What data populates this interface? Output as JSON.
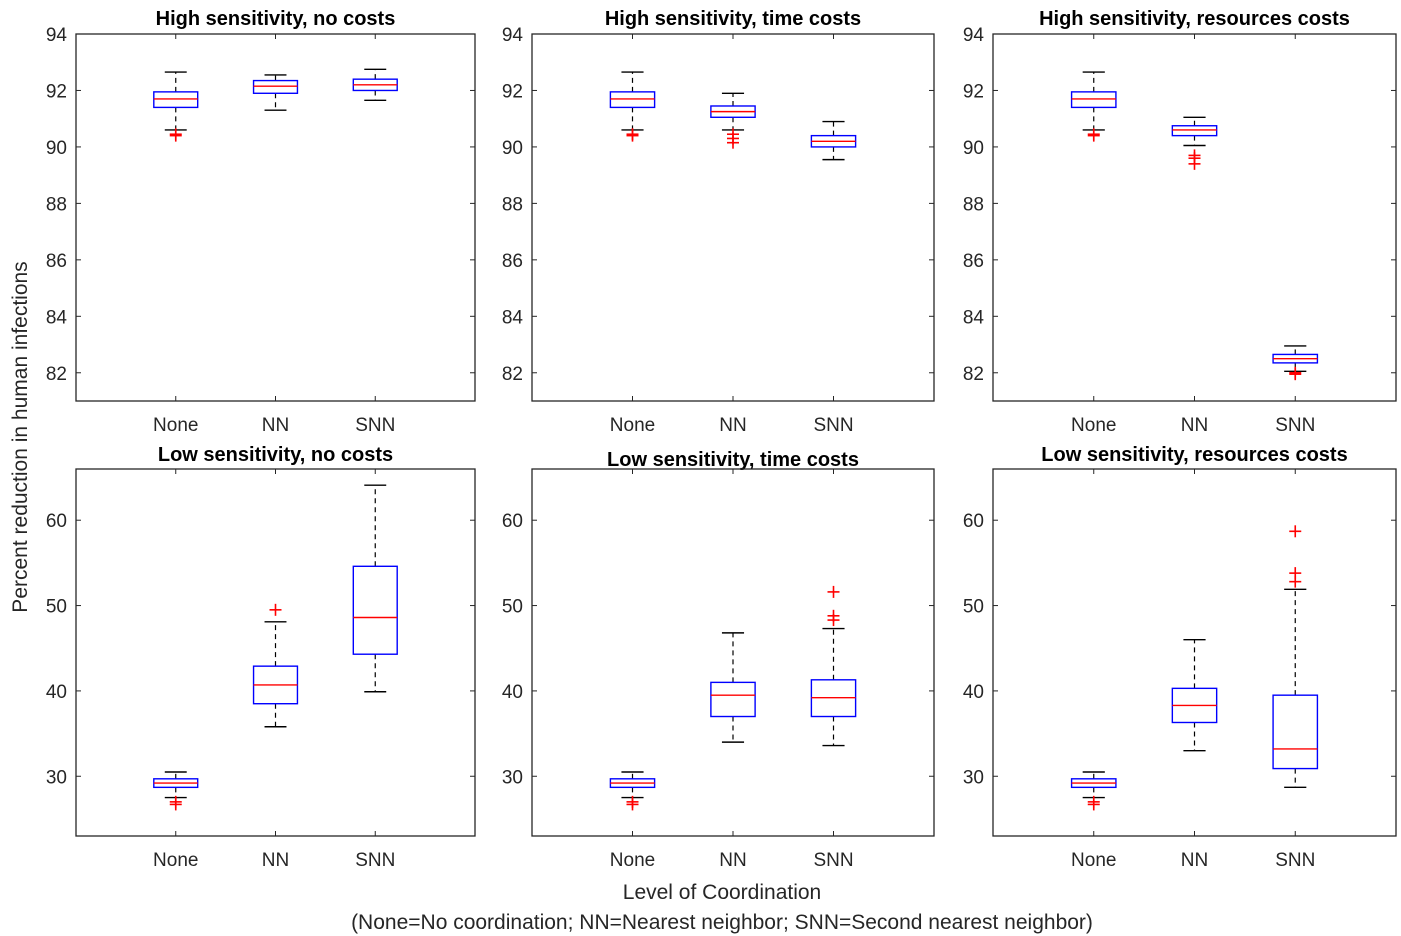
{
  "figure": {
    "ylabel": "Percent reduction in human infections",
    "xlabel": "Level of Coordination",
    "xlabel_note": "(None=No coordination; NN=Nearest neighbor; SNN=Second nearest neighbor)"
  },
  "colors": {
    "box": "#0000ff",
    "median": "#ff0000",
    "outlier": "#ff0000",
    "whisker": "#000000",
    "axes": "#262626"
  },
  "chart_data": [
    {
      "type": "box",
      "title": "High sensitivity, no costs",
      "categories": [
        "None",
        "NN",
        "SNN"
      ],
      "ylim": [
        81,
        94
      ],
      "yticks": [
        82,
        84,
        86,
        88,
        90,
        92,
        94
      ],
      "boxes": [
        {
          "q1": 91.4,
          "median": 91.7,
          "q3": 91.95,
          "whisker_low": 90.6,
          "whisker_high": 92.65,
          "outliers": [
            90.4,
            90.45
          ]
        },
        {
          "q1": 91.9,
          "median": 92.15,
          "q3": 92.35,
          "whisker_low": 91.3,
          "whisker_high": 92.55,
          "outliers": []
        },
        {
          "q1": 92.0,
          "median": 92.2,
          "q3": 92.4,
          "whisker_low": 91.65,
          "whisker_high": 92.75,
          "outliers": []
        }
      ]
    },
    {
      "type": "box",
      "title": "High sensitivity, time costs",
      "categories": [
        "None",
        "NN",
        "SNN"
      ],
      "ylim": [
        81,
        94
      ],
      "yticks": [
        82,
        84,
        86,
        88,
        90,
        92,
        94
      ],
      "boxes": [
        {
          "q1": 91.4,
          "median": 91.7,
          "q3": 91.95,
          "whisker_low": 90.6,
          "whisker_high": 92.65,
          "outliers": [
            90.4,
            90.45
          ]
        },
        {
          "q1": 91.05,
          "median": 91.25,
          "q3": 91.45,
          "whisker_low": 90.6,
          "whisker_high": 91.9,
          "outliers": [
            90.15,
            90.3,
            90.45
          ]
        },
        {
          "q1": 90.0,
          "median": 90.2,
          "q3": 90.4,
          "whisker_low": 89.55,
          "whisker_high": 90.9,
          "outliers": []
        }
      ]
    },
    {
      "type": "box",
      "title": "High sensitivity, resources costs",
      "categories": [
        "None",
        "NN",
        "SNN"
      ],
      "ylim": [
        81,
        94
      ],
      "yticks": [
        82,
        84,
        86,
        88,
        90,
        92,
        94
      ],
      "boxes": [
        {
          "q1": 91.4,
          "median": 91.7,
          "q3": 91.95,
          "whisker_low": 90.6,
          "whisker_high": 92.65,
          "outliers": [
            90.4,
            90.45
          ]
        },
        {
          "q1": 90.4,
          "median": 90.6,
          "q3": 90.75,
          "whisker_low": 90.05,
          "whisker_high": 91.05,
          "outliers": [
            89.4,
            89.6,
            89.7
          ]
        },
        {
          "q1": 82.35,
          "median": 82.5,
          "q3": 82.65,
          "whisker_low": 82.05,
          "whisker_high": 82.95,
          "outliers": [
            81.95,
            82.0
          ]
        }
      ]
    },
    {
      "type": "box",
      "title": "Low sensitivity, no costs",
      "categories": [
        "None",
        "NN",
        "SNN"
      ],
      "ylim": [
        23,
        66
      ],
      "yticks": [
        30,
        40,
        50,
        60
      ],
      "boxes": [
        {
          "q1": 28.7,
          "median": 29.2,
          "q3": 29.7,
          "whisker_low": 27.5,
          "whisker_high": 30.5,
          "outliers": [
            26.7,
            27.0
          ]
        },
        {
          "q1": 38.5,
          "median": 40.7,
          "q3": 42.9,
          "whisker_low": 35.8,
          "whisker_high": 48.1,
          "outliers": [
            49.5
          ]
        },
        {
          "q1": 44.3,
          "median": 48.6,
          "q3": 54.6,
          "whisker_low": 39.9,
          "whisker_high": 64.1,
          "outliers": []
        }
      ]
    },
    {
      "type": "box",
      "title": "Low sensitivity, time costs",
      "categories": [
        "None",
        "NN",
        "SNN"
      ],
      "ylim": [
        23,
        66
      ],
      "yticks": [
        30,
        40,
        50,
        60
      ],
      "boxes": [
        {
          "q1": 28.7,
          "median": 29.2,
          "q3": 29.7,
          "whisker_low": 27.5,
          "whisker_high": 30.5,
          "outliers": [
            26.7,
            27.0
          ]
        },
        {
          "q1": 37.0,
          "median": 39.5,
          "q3": 41.0,
          "whisker_low": 34.0,
          "whisker_high": 46.8,
          "outliers": []
        },
        {
          "q1": 37.0,
          "median": 39.2,
          "q3": 41.3,
          "whisker_low": 33.6,
          "whisker_high": 47.3,
          "outliers": [
            48.3,
            48.8,
            51.6
          ]
        }
      ]
    },
    {
      "type": "box",
      "title": "Low sensitivity, resources costs",
      "categories": [
        "None",
        "NN",
        "SNN"
      ],
      "ylim": [
        23,
        66
      ],
      "yticks": [
        30,
        40,
        50,
        60
      ],
      "boxes": [
        {
          "q1": 28.7,
          "median": 29.2,
          "q3": 29.7,
          "whisker_low": 27.5,
          "whisker_high": 30.5,
          "outliers": [
            26.7,
            27.0
          ]
        },
        {
          "q1": 36.3,
          "median": 38.3,
          "q3": 40.3,
          "whisker_low": 33.0,
          "whisker_high": 46.0,
          "outliers": []
        },
        {
          "q1": 30.9,
          "median": 33.2,
          "q3": 39.5,
          "whisker_low": 28.7,
          "whisker_high": 51.9,
          "outliers": [
            52.8,
            53.8,
            58.7
          ]
        }
      ]
    }
  ]
}
